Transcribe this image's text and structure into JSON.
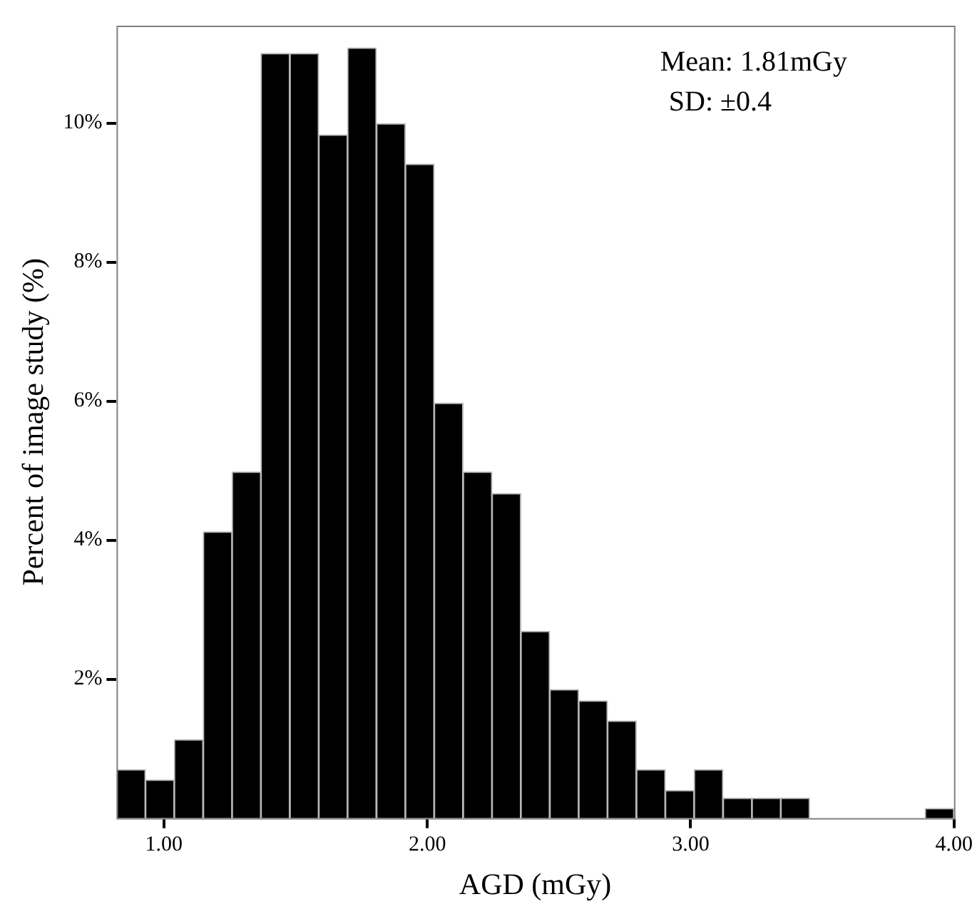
{
  "chart_data": {
    "type": "histogram",
    "xlabel": "AGD (mGy)",
    "ylabel": "Percent of image study (%)",
    "annotations": [
      "Mean: 1.81mGy",
      "SD: ±0.4"
    ],
    "bins": [
      0.82,
      0.93,
      1.039,
      1.149,
      1.259,
      1.368,
      1.478,
      1.588,
      1.697,
      1.807,
      1.917,
      2.026,
      2.136,
      2.246,
      2.355,
      2.465,
      2.575,
      2.684,
      2.794,
      2.904,
      3.013,
      3.123,
      3.233,
      3.342,
      3.452,
      3.562,
      3.671,
      3.781,
      3.89,
      4.0
    ],
    "values": [
      0.7,
      0.55,
      1.13,
      4.12,
      4.98,
      11.0,
      11.0,
      9.83,
      11.08,
      9.99,
      9.41,
      5.97,
      4.98,
      4.67,
      2.69,
      1.85,
      1.69,
      1.4,
      0.7,
      0.4,
      0.7,
      0.29,
      0.29,
      0.29,
      0,
      0,
      0,
      0,
      0.14
    ],
    "color": "#000000",
    "xlim": [
      0.82,
      4.0
    ],
    "xticks": [
      {
        "value": 1,
        "label": "1.00"
      },
      {
        "value": 2,
        "label": "2.00"
      },
      {
        "value": 3,
        "label": "3.00"
      },
      {
        "value": 4,
        "label": "4.00"
      }
    ],
    "ylim": [
      0,
      11.4
    ],
    "yticks": [
      {
        "value": 2,
        "label": "2%"
      },
      {
        "value": 4,
        "label": "4%"
      },
      {
        "value": 6,
        "label": "6%"
      },
      {
        "value": 8,
        "label": "8%"
      },
      {
        "value": 10,
        "label": "10%"
      }
    ]
  }
}
